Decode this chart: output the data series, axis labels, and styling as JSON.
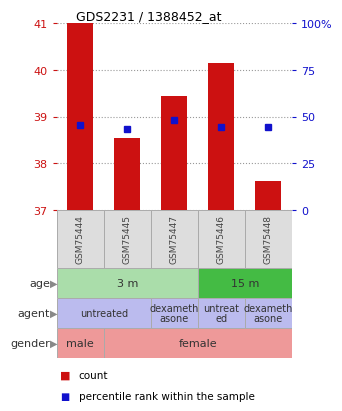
{
  "title": "GDS2231 / 1388452_at",
  "samples": [
    "GSM75444",
    "GSM75445",
    "GSM75447",
    "GSM75446",
    "GSM75448"
  ],
  "bar_tops": [
    41.0,
    38.55,
    39.45,
    40.15,
    37.62
  ],
  "bar_bottom": 37.0,
  "percentile_yvals": [
    38.83,
    38.73,
    38.93,
    38.78,
    38.78
  ],
  "ylim_left": [
    37,
    41
  ],
  "ylim_right": [
    0,
    100
  ],
  "yticks_left": [
    37,
    38,
    39,
    40,
    41
  ],
  "yticks_right": [
    0,
    25,
    50,
    75,
    100
  ],
  "bar_color": "#cc1111",
  "percentile_color": "#1111cc",
  "age_groups": [
    {
      "label": "3 m",
      "start": 0,
      "end": 3,
      "color": "#aaddaa"
    },
    {
      "label": "15 m",
      "start": 3,
      "end": 5,
      "color": "#44bb44"
    }
  ],
  "agent_groups": [
    {
      "label": "untreated",
      "start": 0,
      "end": 2,
      "color": "#bbbbee"
    },
    {
      "label": "dexameth\nasone",
      "start": 2,
      "end": 3,
      "color": "#bbbbee"
    },
    {
      "label": "untreat\ned",
      "start": 3,
      "end": 4,
      "color": "#bbbbee"
    },
    {
      "label": "dexameth\nasone",
      "start": 4,
      "end": 5,
      "color": "#bbbbee"
    }
  ],
  "gender_groups": [
    {
      "label": "male",
      "start": 0,
      "end": 1,
      "color": "#ee9999"
    },
    {
      "label": "female",
      "start": 1,
      "end": 5,
      "color": "#ee9999"
    }
  ],
  "row_labels": [
    "age",
    "agent",
    "gender"
  ]
}
